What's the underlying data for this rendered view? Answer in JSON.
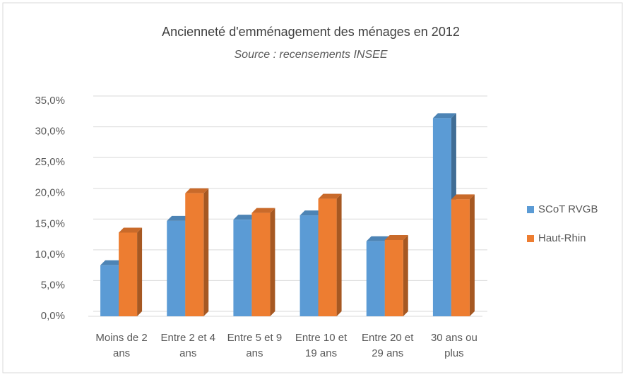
{
  "chart_data": {
    "type": "bar3d",
    "title": "Ancienneté d'emménagement des ménages en 2012",
    "subtitle": "Source : recensements INSEE",
    "categories": [
      "Moins de 2 ans",
      "Entre 2 et 4 ans",
      "Entre 5 et 9 ans",
      "Entre 10 et 19 ans",
      "Entre 20 et 29 ans",
      "30 ans ou plus"
    ],
    "series": [
      {
        "name": "SCoT RVGB",
        "color": "#5b9bd5",
        "values": [
          8.3,
          15.5,
          15.7,
          16.4,
          12.2,
          32.2
        ]
      },
      {
        "name": "Haut-Rhin",
        "color": "#ed7d31",
        "values": [
          13.6,
          20.0,
          16.8,
          19.1,
          12.4,
          19.0
        ]
      }
    ],
    "ylim": [
      0,
      35
    ],
    "yticks": [
      {
        "value": 0,
        "label": "0,0%"
      },
      {
        "value": 5,
        "label": "5,0%"
      },
      {
        "value": 10,
        "label": "10,0%"
      },
      {
        "value": 15,
        "label": "15,0%"
      },
      {
        "value": 20,
        "label": "20,0%"
      },
      {
        "value": 25,
        "label": "25,0%"
      },
      {
        "value": 30,
        "label": "30,0%"
      },
      {
        "value": 35,
        "label": "35,0%"
      }
    ],
    "grid": true,
    "legend": "right"
  }
}
